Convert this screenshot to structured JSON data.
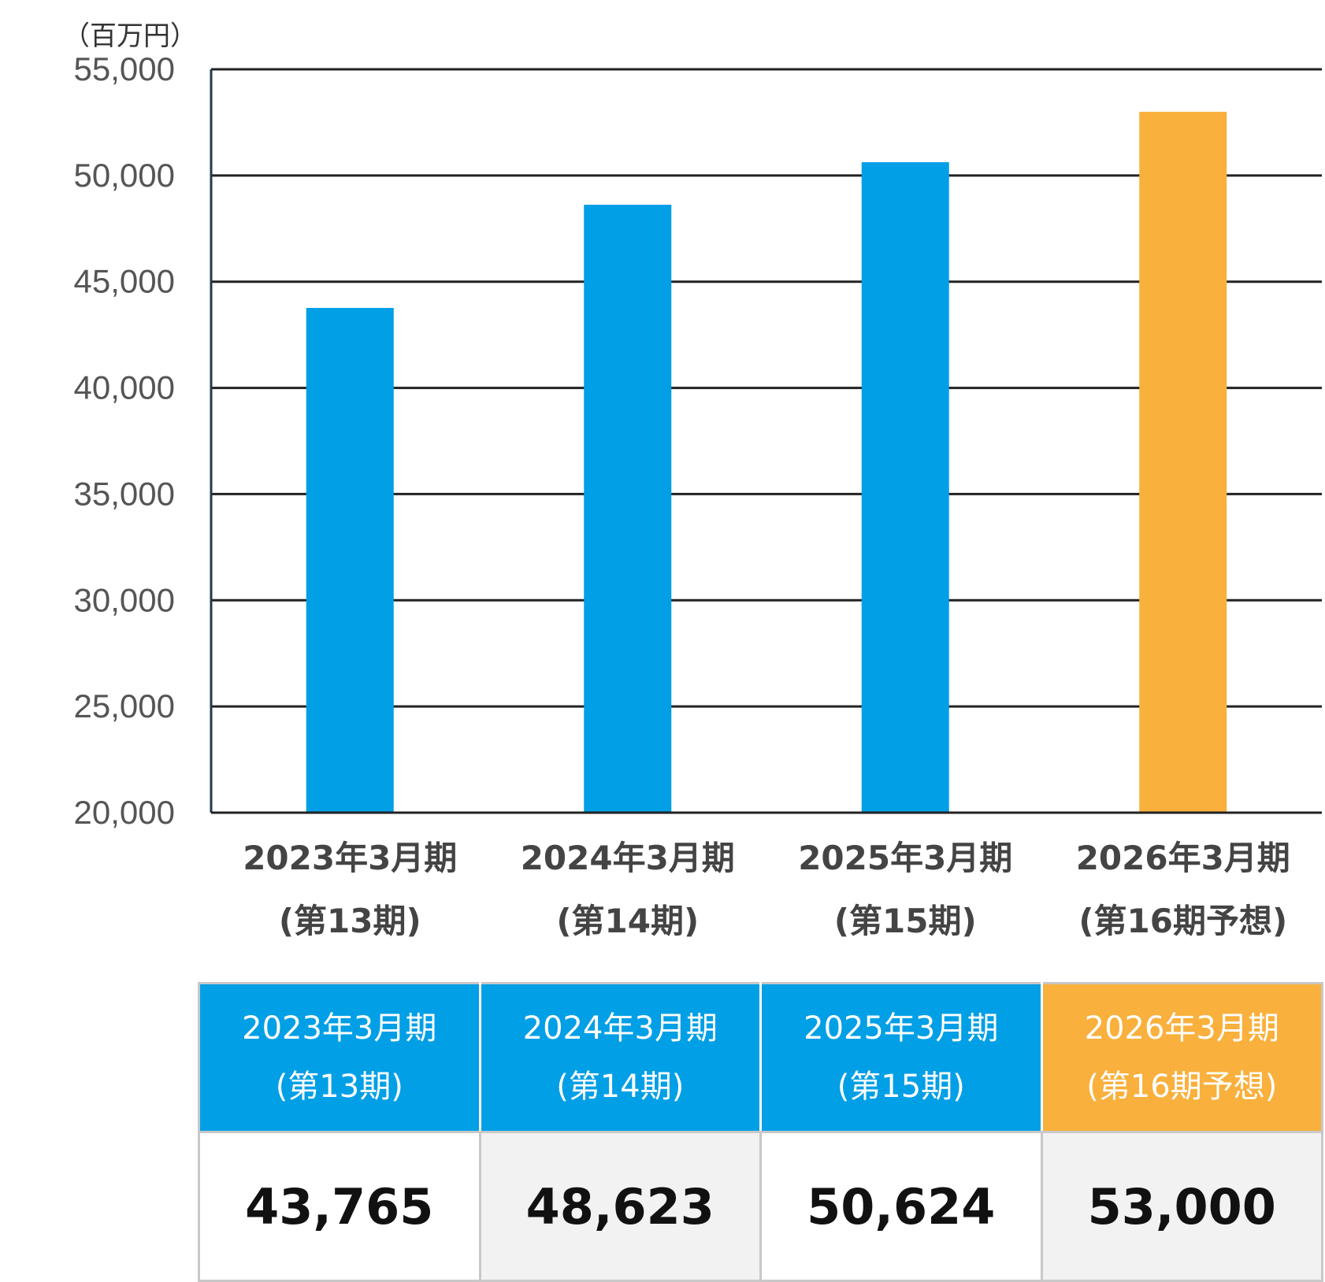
{
  "chart_data": {
    "type": "bar",
    "unit_label": "（百万円）",
    "categories": [
      [
        "2023年3月期",
        "(第13期)"
      ],
      [
        "2024年3月期",
        "(第14期)"
      ],
      [
        "2025年3月期",
        "(第15期)"
      ],
      [
        "2026年3月期",
        "(第16期予想)"
      ]
    ],
    "values": [
      43765,
      48623,
      50624,
      53000
    ],
    "forecast": [
      false,
      false,
      false,
      true
    ],
    "ylim": [
      20000,
      55000
    ],
    "yticks": [
      20000,
      25000,
      30000,
      35000,
      40000,
      45000,
      50000,
      55000
    ],
    "ytick_labels": [
      "20,000",
      "25,000",
      "30,000",
      "35,000",
      "40,000",
      "45,000",
      "50,000",
      "55,000"
    ],
    "grid": true,
    "colors": {
      "actual": "#009FE6",
      "forecast": "#F9B03C",
      "grid": "#222222",
      "tick_text": "#555555",
      "category_text": "#444444"
    }
  },
  "table": {
    "headers": [
      [
        "2023年3月期",
        "(第13期)"
      ],
      [
        "2024年3月期",
        "(第14期)"
      ],
      [
        "2025年3月期",
        "(第15期)"
      ],
      [
        "2026年3月期",
        "(第16期予想)"
      ]
    ],
    "values": [
      "43,765",
      "48,623",
      "50,624",
      "53,000"
    ],
    "colors": {
      "header_actual": "#009FE6",
      "header_forecast": "#F9B03C",
      "cell_white": "#ffffff",
      "cell_gray": "#f2f2f2"
    }
  }
}
